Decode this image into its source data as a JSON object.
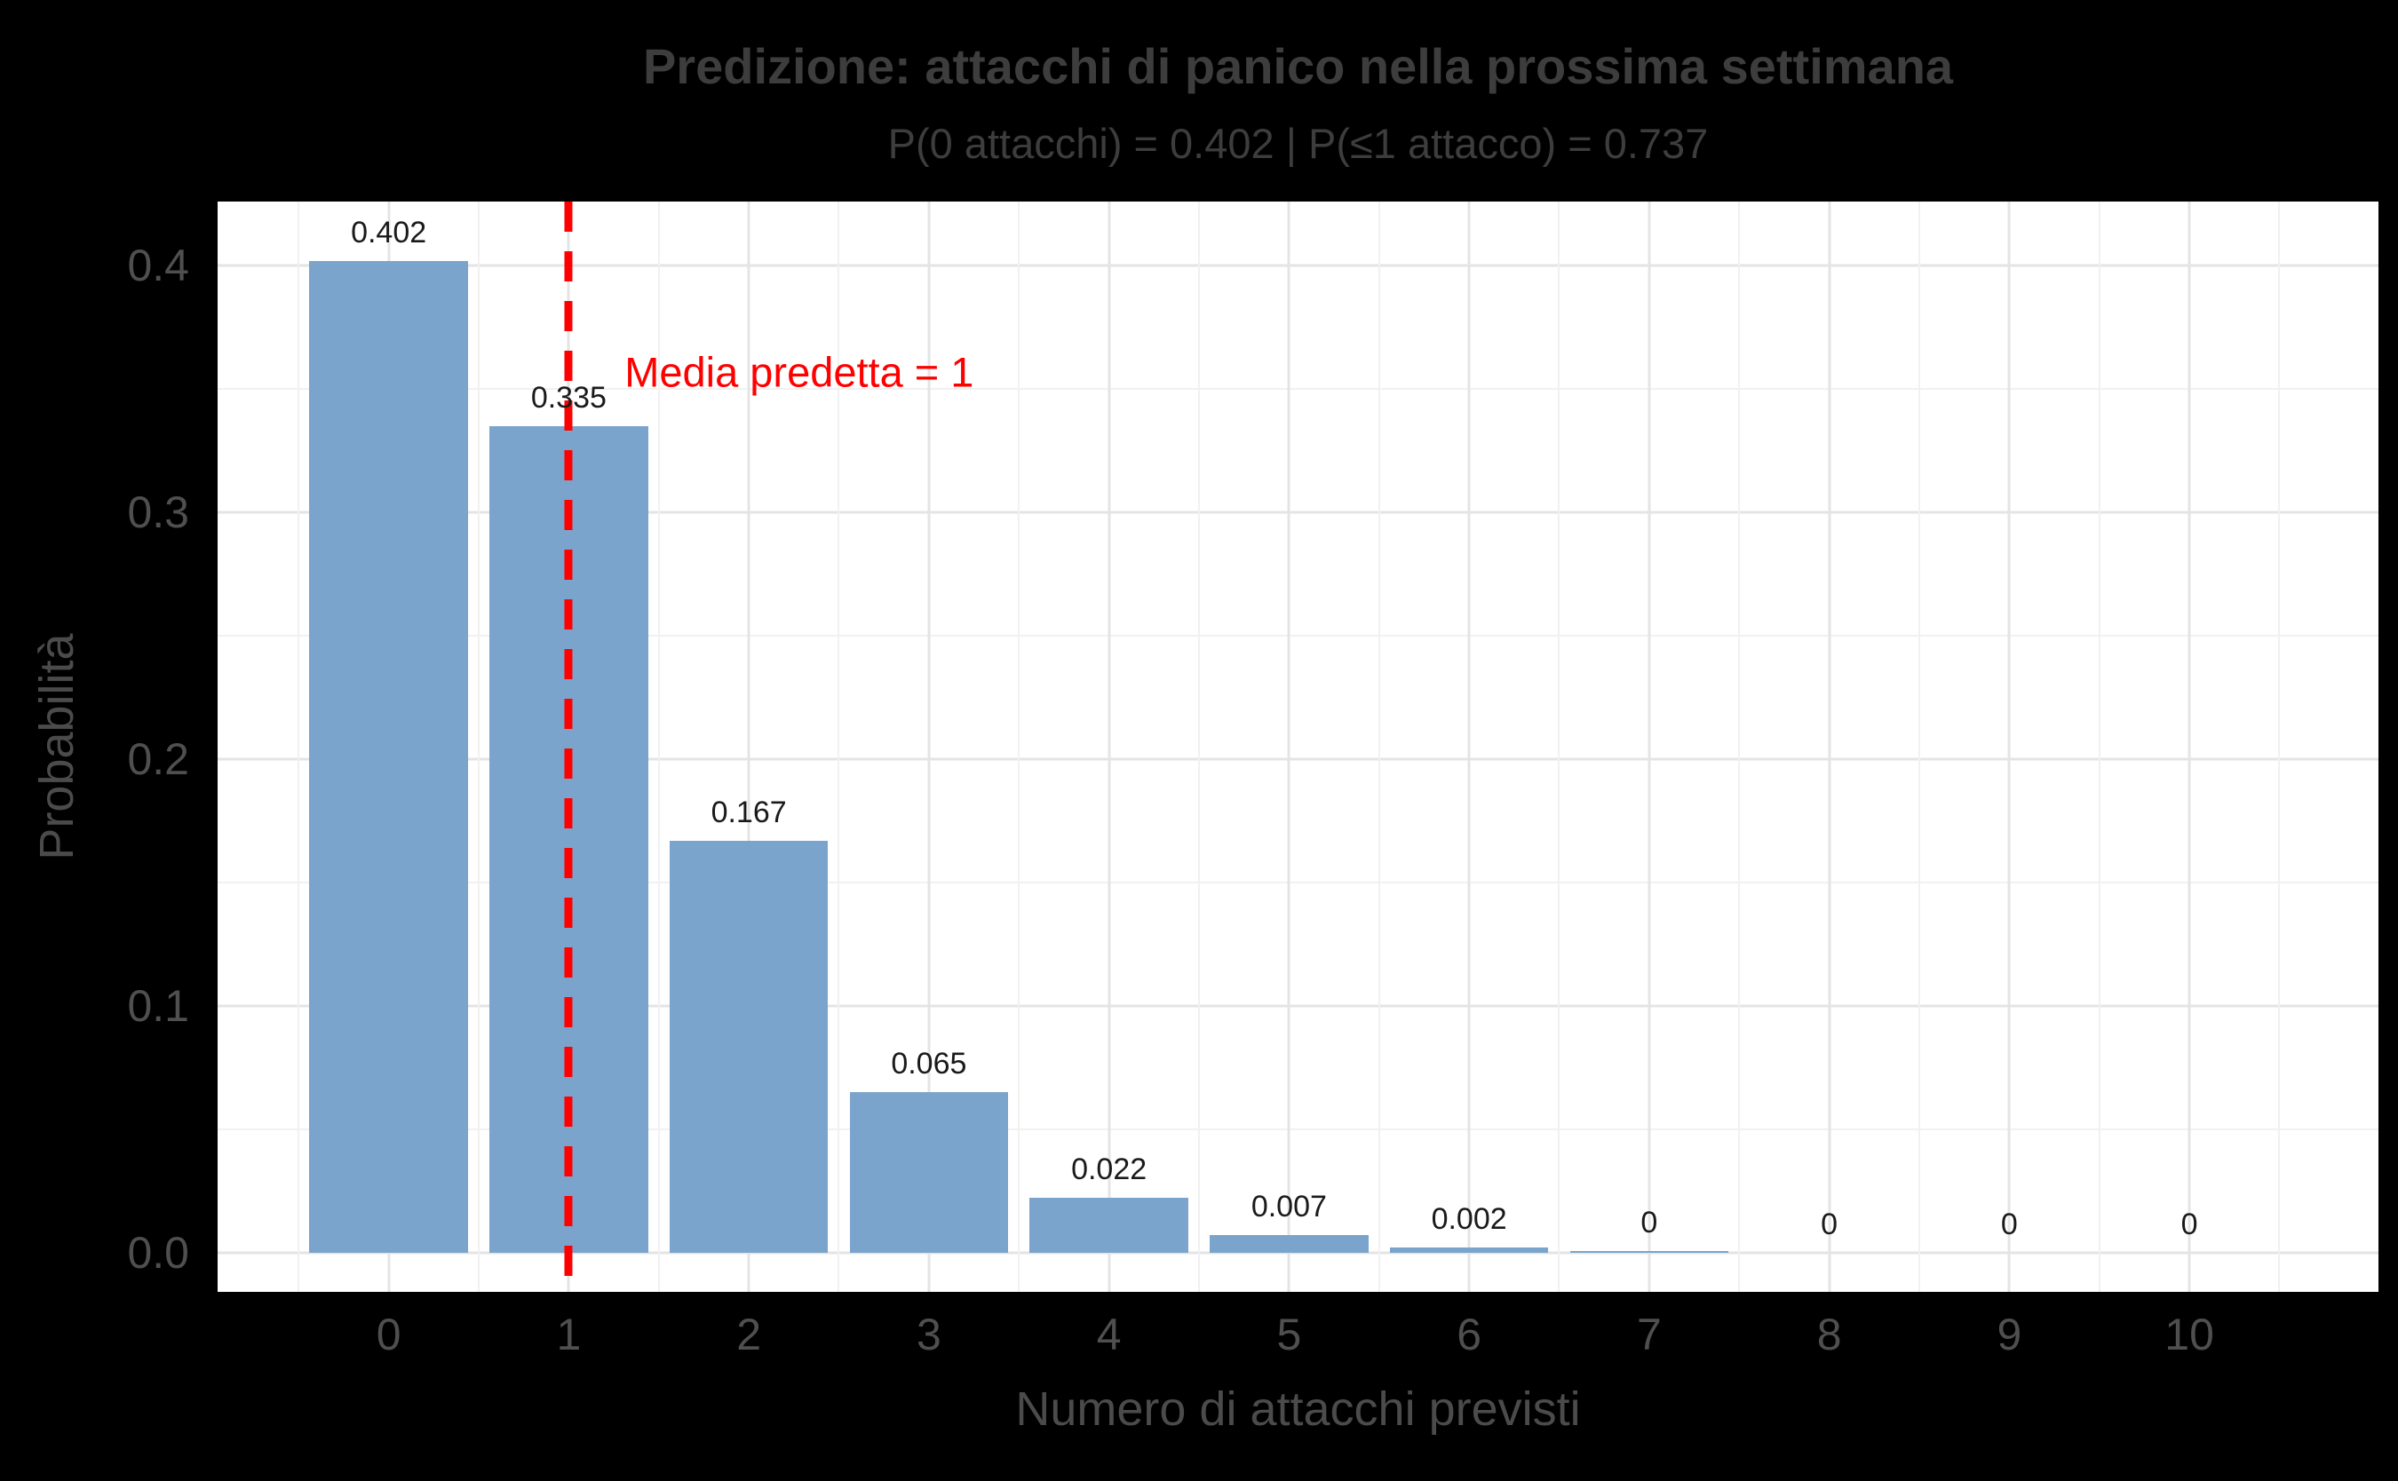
{
  "colors": {
    "background": "#000000",
    "panel_bg": "#ffffff",
    "grid_major": "#e4e4e4",
    "grid_minor": "#f1f1f1",
    "bar": "#7BA4CC",
    "title_text": "#3d3d3d",
    "axis_text": "#4f4f4f",
    "axis_title_text": "#4b4b4b",
    "bar_label": "#1a1a1a",
    "mean_line": "#ff0000"
  },
  "chart_data": {
    "type": "bar",
    "title": "Predizione: attacchi di panico nella prossima settimana",
    "subtitle": "P(0 attacchi) = 0.402 | P(≤1 attacco) = 0.737",
    "xlabel": "Numero di attacchi previsti",
    "ylabel": "Probabilità",
    "categories": [
      "0",
      "1",
      "2",
      "3",
      "4",
      "5",
      "6",
      "7",
      "8",
      "9",
      "10"
    ],
    "values": [
      0.402,
      0.335,
      0.167,
      0.065,
      0.022,
      0.007,
      0.002,
      0.0005,
      0,
      0,
      0
    ],
    "bar_labels": [
      "0.402",
      "0.335",
      "0.167",
      "0.065",
      "0.022",
      "0.007",
      "0.002",
      "0",
      "0",
      "0",
      "0"
    ],
    "yticks": [
      0,
      0.1,
      0.2,
      0.3,
      0.4
    ],
    "ytick_labels": [
      "0.0",
      "0.1",
      "0.2",
      "0.3",
      "0.4"
    ],
    "y_range": [
      -0.016,
      0.426
    ],
    "x_range": [
      -0.95,
      11.05
    ],
    "bar_width": 0.88,
    "grid": true,
    "legend": false,
    "mean_line": {
      "x": 1,
      "label": "Media predetta = 1",
      "label_x": 1.31,
      "label_y": 0.357
    }
  }
}
